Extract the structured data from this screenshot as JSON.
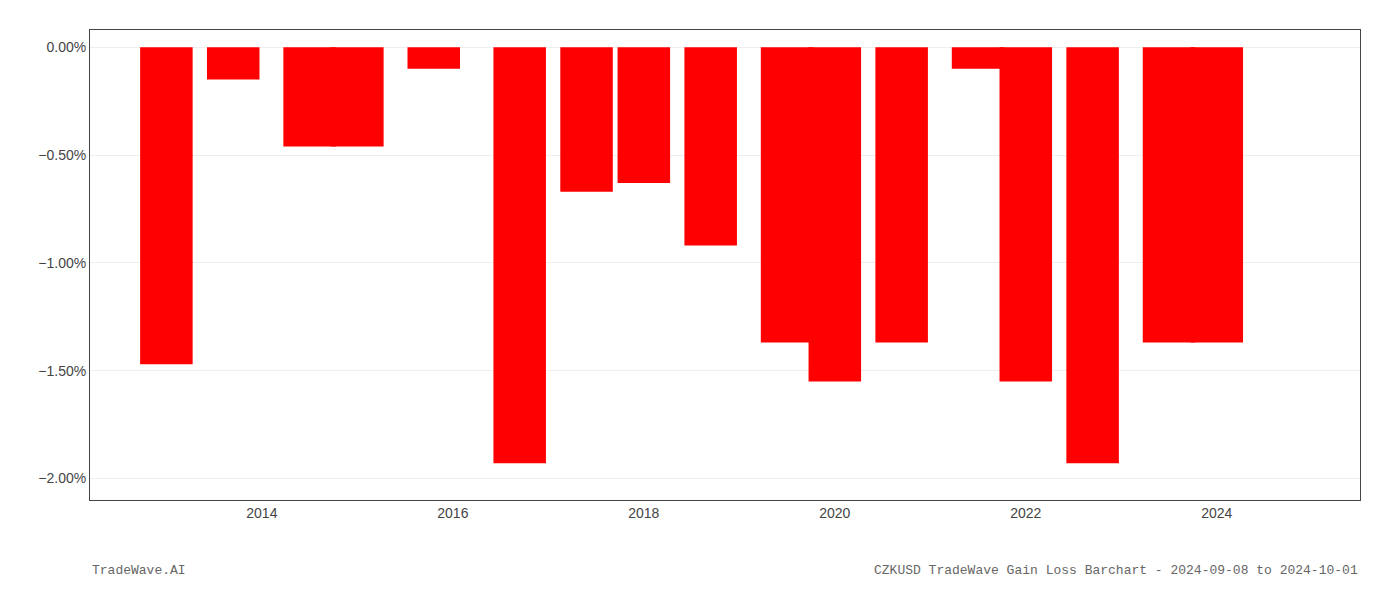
{
  "chart_data": {
    "type": "bar",
    "x": [
      2013,
      2013.7,
      2014.5,
      2015,
      2015.8,
      2016.7,
      2017.4,
      2018,
      2018.7,
      2019.5,
      2020,
      2020.7,
      2021.5,
      2022,
      2022.7,
      2023.5,
      2024
    ],
    "values": [
      -1.47,
      -0.15,
      -0.46,
      -0.46,
      -0.1,
      -1.93,
      -0.67,
      -0.63,
      -0.92,
      -1.37,
      -1.55,
      -1.37,
      -0.1,
      -1.55,
      -1.93,
      -1.37,
      -1.37
    ],
    "color": "#ff0000",
    "xlim": [
      2012.2,
      2025.5
    ],
    "xticks": [
      2014,
      2016,
      2018,
      2020,
      2022,
      2024
    ],
    "ylim": [
      -2.1,
      0.08
    ],
    "yticks": [
      {
        "value": 0.0,
        "label": "0.00%"
      },
      {
        "value": -0.5,
        "label": "−0.50%"
      },
      {
        "value": -1.0,
        "label": "−1.00%"
      },
      {
        "value": -1.5,
        "label": "−1.50%"
      },
      {
        "value": -2.0,
        "label": "−2.00%"
      }
    ],
    "grid": true,
    "annotations": [
      "TradeWave.AI",
      "CZKUSD TradeWave Gain Loss Barchart - 2024-09-08 to 2024-10-01"
    ]
  }
}
